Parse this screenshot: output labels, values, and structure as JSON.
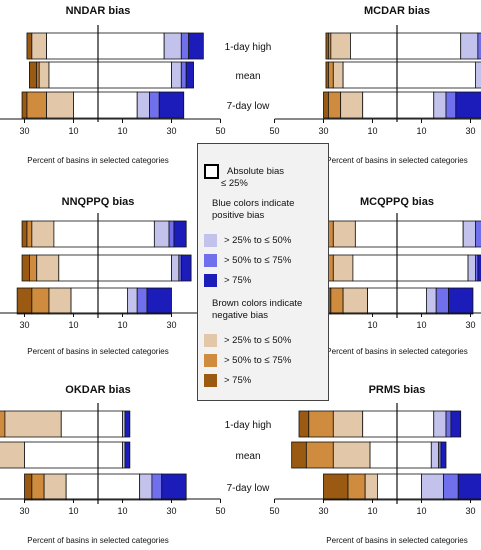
{
  "chart_data": {
    "type": "bar",
    "orientation": "horizontal-diverging",
    "x_ticks": [
      "50",
      "30",
      "10",
      "10",
      "30",
      "50"
    ],
    "xlabel": "Percent of basins in selected categories",
    "row_labels": [
      "1-day high",
      "mean",
      "7-day low"
    ],
    "category_order_negative": [
      "> 75%",
      "> 50% to ≤ 75%",
      "> 25% to ≤ 50%",
      "Absolute bias ≤ 25%"
    ],
    "category_order_positive": [
      "Absolute bias ≤ 25%",
      "> 25% to ≤ 50%",
      "> 50% to ≤ 75%",
      "> 75%"
    ],
    "panels": [
      {
        "title": "NNDAR bias",
        "rows": [
          {
            "label": "1-day high",
            "neg": [
              2,
              0,
              6,
              21
            ],
            "pos": [
              27,
              7,
              3,
              6
            ]
          },
          {
            "label": "mean",
            "neg": [
              3,
              1,
              4,
              20
            ],
            "pos": [
              30,
              4,
              2,
              3
            ]
          },
          {
            "label": "7-day low",
            "neg": [
              2,
              8,
              11,
              10
            ],
            "pos": [
              16,
              5,
              4,
              10
            ]
          }
        ]
      },
      {
        "title": "MCDAR bias",
        "rows": [
          {
            "label": "1-day high",
            "neg": [
              1,
              1,
              8,
              19
            ],
            "pos": [
              26,
              7,
              3,
              7
            ]
          },
          {
            "label": "mean",
            "neg": [
              1,
              2,
              4,
              22
            ],
            "pos": [
              32,
              4,
              2,
              5
            ]
          },
          {
            "label": "7-day low",
            "neg": [
              2,
              5,
              9,
              14
            ],
            "pos": [
              15,
              5,
              4,
              14
            ]
          }
        ]
      },
      {
        "title": "NNQPPQ bias",
        "rows": [
          {
            "label": "1-day high",
            "neg": [
              2,
              2,
              9,
              18
            ],
            "pos": [
              23,
              6,
              2,
              5
            ]
          },
          {
            "label": "mean",
            "neg": [
              3,
              3,
              9,
              16
            ],
            "pos": [
              30,
              3,
              1,
              4
            ]
          },
          {
            "label": "7-day low",
            "neg": [
              6,
              7,
              9,
              11
            ],
            "pos": [
              12,
              4,
              4,
              10
            ]
          }
        ]
      },
      {
        "title": "MCQPPQ bias",
        "rows": [
          {
            "label": "1-day high",
            "neg": [
              2,
              2,
              9,
              17
            ],
            "pos": [
              27,
              5,
              3,
              5
            ]
          },
          {
            "label": "mean",
            "neg": [
              2,
              3,
              8,
              18
            ],
            "pos": [
              29,
              3,
              1,
              4
            ]
          },
          {
            "label": "7-day low",
            "neg": [
              6,
              5,
              10,
              12
            ],
            "pos": [
              12,
              4,
              5,
              10
            ]
          }
        ]
      },
      {
        "title": "OKDAR bias",
        "rows": [
          {
            "label": "1-day high",
            "neg": [
              2,
              11,
              23,
              15
            ],
            "pos": [
              10,
              1,
              0,
              2
            ]
          },
          {
            "label": "mean",
            "neg": [
              3,
              5,
              14,
              30
            ],
            "pos": [
              10,
              1,
              0,
              2
            ]
          },
          {
            "label": "7-day low",
            "neg": [
              3,
              5,
              9,
              13
            ],
            "pos": [
              17,
              5,
              4,
              10
            ]
          }
        ]
      },
      {
        "title": "PRMS bias",
        "rows": [
          {
            "label": "1-day high",
            "neg": [
              4,
              10,
              12,
              14
            ],
            "pos": [
              15,
              5,
              2,
              4
            ]
          },
          {
            "label": "mean",
            "neg": [
              6,
              11,
              15,
              11
            ],
            "pos": [
              14,
              3,
              1,
              2
            ]
          },
          {
            "label": "7-day low",
            "neg": [
              10,
              7,
              5,
              8
            ],
            "pos": [
              10,
              9,
              6,
              15
            ]
          }
        ]
      }
    ]
  },
  "colors": {
    "neg": [
      "#9a5a12",
      "#cf8c3e",
      "#e2c7a8",
      "#ffffff"
    ],
    "pos": [
      "#ffffff",
      "#c2c2ec",
      "#7070ec",
      "#1c1cba"
    ],
    "axis": "#111111"
  },
  "legend": {
    "abs_label": "Absolute bias",
    "abs_label2": "≤ 25%",
    "pos_title1": "Blue colors indicate",
    "pos_title2": "positive bias",
    "pos_items": [
      "> 25% to ≤ 50%",
      "> 50% to ≤ 75%",
      "> 75%"
    ],
    "neg_title1": "Brown colors indicate",
    "neg_title2": "negative bias",
    "neg_items": [
      "> 25% to ≤ 50%",
      "> 50% to ≤ 75%",
      "> 75%"
    ]
  }
}
